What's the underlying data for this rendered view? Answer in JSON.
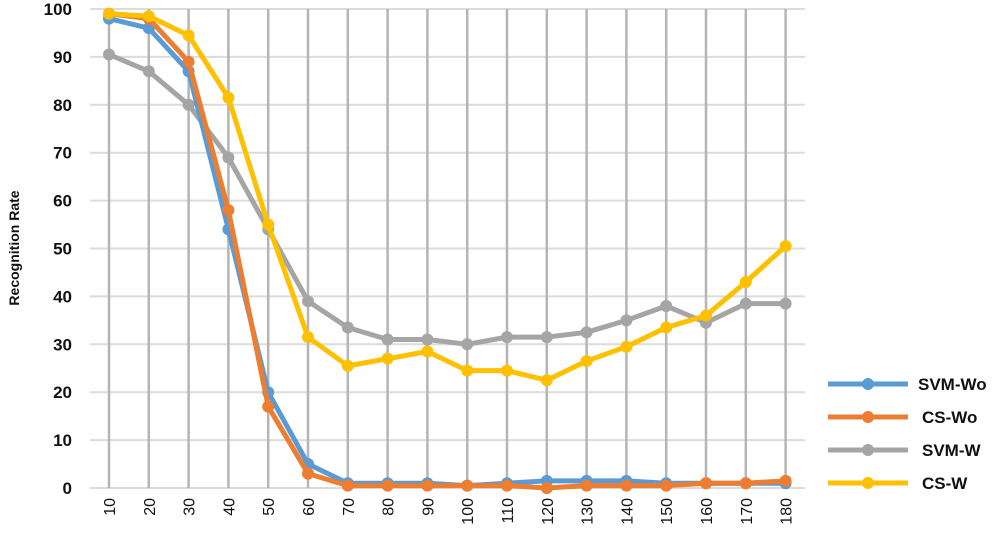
{
  "chart_data": {
    "type": "line",
    "title": "",
    "xlabel": "",
    "ylabel": "Recognition Rate",
    "x": [
      10,
      20,
      30,
      40,
      50,
      60,
      70,
      80,
      90,
      100,
      110,
      120,
      130,
      140,
      150,
      160,
      170,
      180
    ],
    "ylim": [
      0,
      100
    ],
    "yticks": [
      0,
      10,
      20,
      30,
      40,
      50,
      60,
      70,
      80,
      90,
      100
    ],
    "grid": true,
    "legend_position": "bottom-right",
    "series": [
      {
        "name": "SVM-Wo",
        "color": "#5b9bd5",
        "values": [
          98,
          96,
          87,
          54,
          20,
          5,
          1,
          1,
          1,
          0.5,
          1,
          1.5,
          1.5,
          1.5,
          1,
          1,
          1,
          1
        ]
      },
      {
        "name": "CS-Wo",
        "color": "#ed7d31",
        "values": [
          99,
          98,
          89,
          58,
          17,
          3,
          0.5,
          0.5,
          0.5,
          0.5,
          0.5,
          0,
          0.5,
          0.5,
          0.5,
          1,
          1,
          1.5
        ]
      },
      {
        "name": "SVM-W",
        "color": "#a5a5a5",
        "values": [
          90.5,
          87,
          80,
          69,
          54,
          39,
          33.5,
          31,
          31,
          30,
          31.5,
          31.5,
          32.5,
          35,
          38,
          34.5,
          38.5,
          38.5
        ]
      },
      {
        "name": "CS-W",
        "color": "#ffc000",
        "values": [
          99,
          98.5,
          94.5,
          81.5,
          55,
          31.5,
          25.5,
          27,
          28.5,
          24.5,
          24.5,
          22.5,
          26.5,
          29.5,
          33.5,
          36,
          43,
          50.5
        ]
      }
    ]
  }
}
